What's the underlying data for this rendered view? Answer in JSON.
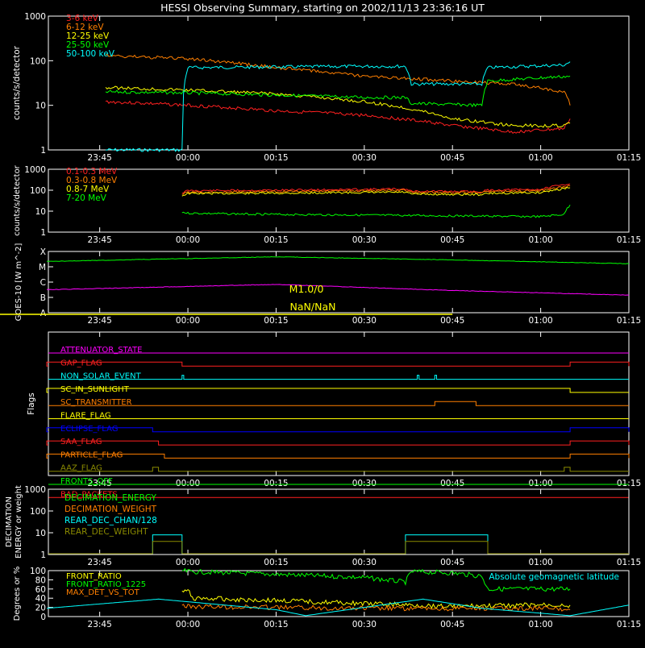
{
  "title": "HESSI Observing Summary, starting on 2002/11/13 23:36:16 UT",
  "time_ticks": [
    "23:45",
    "00:00",
    "00:15",
    "00:30",
    "00:45",
    "01:00",
    "01:15"
  ],
  "colors": {
    "red": "#ff2020",
    "orange": "#ff7f00",
    "yellow": "#ffff00",
    "green": "#00ff00",
    "cyan": "#00ffff",
    "magenta": "#ff00ff",
    "blue": "#0000ff",
    "white": "#ffffff",
    "olive": "#8b8b00"
  },
  "chart_data": [
    {
      "type": "line",
      "ylabel": "counts/s/detector",
      "yscale": "log",
      "ylim": [
        1,
        1000
      ],
      "yticks": [
        "1",
        "10",
        "100",
        "1000"
      ],
      "legend_placement": "top-left",
      "series": [
        {
          "name": "3-6 keV",
          "color": "#ff2020",
          "t": [
            "23:46",
            "00:00",
            "00:15",
            "00:30",
            "00:45",
            "00:55",
            "01:04",
            "01:05"
          ],
          "values": [
            12,
            10,
            7.5,
            6,
            3.5,
            2.5,
            3,
            5
          ]
        },
        {
          "name": "6-12 keV",
          "color": "#ff7f00",
          "t": [
            "23:46",
            "00:00",
            "00:15",
            "00:30",
            "00:45",
            "00:55",
            "01:04",
            "01:05"
          ],
          "values": [
            130,
            110,
            70,
            45,
            35,
            30,
            20,
            10
          ]
        },
        {
          "name": "12-25 keV",
          "color": "#ffff00",
          "t": [
            "23:46",
            "00:00",
            "00:15",
            "00:30",
            "00:45",
            "00:55",
            "01:04",
            "01:05"
          ],
          "values": [
            25,
            22,
            18,
            12,
            5,
            3.5,
            3.5,
            4
          ]
        },
        {
          "name": "25-50 keV",
          "color": "#00ff00",
          "t": [
            "23:46",
            "00:00",
            "00:15",
            "00:30",
            "00:37",
            "00:38",
            "00:50",
            "00:51",
            "01:05"
          ],
          "values": [
            20,
            19,
            17,
            15,
            15,
            11,
            10,
            35,
            45
          ]
        },
        {
          "name": "50-100 keV",
          "color": "#00ffff",
          "t": [
            "23:46",
            "23:59",
            "00:00",
            "00:30",
            "00:37",
            "00:38",
            "00:50",
            "00:51",
            "01:04",
            "01:05"
          ],
          "values": [
            1,
            1,
            70,
            75,
            75,
            30,
            30,
            70,
            80,
            95
          ]
        }
      ]
    },
    {
      "type": "line",
      "ylabel": "counts/s/detector",
      "yscale": "log",
      "ylim": [
        1,
        1000
      ],
      "yticks": [
        "1",
        "10",
        "100",
        "1000"
      ],
      "legend_placement": "top-left",
      "series": [
        {
          "name": "0.1-0.3 MeV",
          "color": "#ff2020",
          "t": [
            "23:59",
            "00:00",
            "00:15",
            "00:30",
            "00:37",
            "00:38",
            "00:50",
            "00:51",
            "01:00",
            "01:05"
          ],
          "values": [
            75,
            95,
            100,
            110,
            115,
            90,
            85,
            100,
            110,
            200
          ]
        },
        {
          "name": "0.3-0.8 MeV",
          "color": "#ff7f00",
          "t": [
            "23:59",
            "00:00",
            "00:15",
            "00:30",
            "00:37",
            "00:38",
            "00:50",
            "00:51",
            "01:00",
            "01:05"
          ],
          "values": [
            65,
            80,
            85,
            95,
            100,
            80,
            75,
            85,
            95,
            160
          ]
        },
        {
          "name": "0.8-7 MeV",
          "color": "#ffff00",
          "t": [
            "23:59",
            "00:00",
            "00:15",
            "00:30",
            "00:37",
            "00:38",
            "00:50",
            "00:51",
            "01:00",
            "01:05"
          ],
          "values": [
            55,
            70,
            72,
            78,
            80,
            65,
            62,
            70,
            78,
            130
          ]
        },
        {
          "name": "7-20 MeV",
          "color": "#00ff00",
          "t": [
            "23:59",
            "00:00",
            "00:15",
            "00:30",
            "00:45",
            "01:00",
            "01:04",
            "01:05"
          ],
          "values": [
            9,
            8,
            7,
            6.5,
            6,
            5.5,
            7,
            20
          ]
        }
      ]
    },
    {
      "type": "line",
      "ylabel": "GOES-10 [W m^-2]",
      "yticks": [
        "A",
        "B",
        "C",
        "M",
        "X"
      ],
      "annotation": "M1.0/0",
      "annotation2": "NaN/NaN",
      "series": [
        {
          "name": "",
          "color": "#00ff00",
          "t": [
            "23:36",
            "00:15",
            "00:45",
            "01:15"
          ],
          "level": [
            3.35,
            3.65,
            3.45,
            3.2
          ]
        },
        {
          "name": "",
          "color": "#ff00ff",
          "t": [
            "23:36",
            "00:15",
            "00:45",
            "01:15"
          ],
          "level": [
            1.5,
            1.85,
            1.45,
            1.15
          ]
        }
      ]
    }
  ],
  "flags_panel": {
    "ylabel": "Flags",
    "flags": [
      {
        "name": "ATTENUATOR_STATE",
        "color": "#ff00ff"
      },
      {
        "name": "GAP_FLAG",
        "color": "#ff2020",
        "high": [
          [
            "23:36",
            "23:59"
          ],
          [
            "01:05",
            "01:15"
          ]
        ]
      },
      {
        "name": "NON_SOLAR_EVENT",
        "color": "#00ffff",
        "high": [
          [
            "23:59",
            "23:59.3"
          ],
          [
            "00:39",
            "00:39.3"
          ],
          [
            "00:42",
            "00:42.3"
          ]
        ]
      },
      {
        "name": "SC_IN_SUNLIGHT",
        "color": "#ffff00",
        "high": [
          [
            "23:36",
            "01:05"
          ]
        ]
      },
      {
        "name": "SC_TRANSMITTER",
        "color": "#ff7f00",
        "high": [
          [
            "00:42",
            "00:49"
          ]
        ]
      },
      {
        "name": "FLARE_FLAG",
        "color": "#ffff00"
      },
      {
        "name": "ECLIPSE_FLAG",
        "color": "#0000ff",
        "high": [
          [
            "23:36",
            "23:54"
          ],
          [
            "01:05",
            "01:15"
          ]
        ]
      },
      {
        "name": "SAA_FLAG",
        "color": "#ff2020",
        "high": [
          [
            "23:36",
            "23:55"
          ],
          [
            "01:05",
            "01:15"
          ]
        ]
      },
      {
        "name": "PARTICLE_FLAG",
        "color": "#ff7f00",
        "high": [
          [
            "23:36",
            "23:56"
          ],
          [
            "01:05",
            "01:15"
          ]
        ]
      },
      {
        "name": "AAZ_FLAG",
        "color": "#8b8b00",
        "high": [
          [
            "23:54",
            "23:55"
          ],
          [
            "01:04",
            "01:05"
          ]
        ]
      },
      {
        "name": "FRONTS_OFF",
        "color": "#00ff00"
      },
      {
        "name": "BAD_PACKETS",
        "color": "#ff2020"
      }
    ]
  },
  "decim_panel": {
    "ylabel_1": "DECIMATION",
    "ylabel_2": "ENERGY or weight",
    "yticks": [
      "1",
      "10",
      "100",
      "1000"
    ],
    "legend": [
      {
        "name": "DECIMATION_ENERGY",
        "color": "#00ff00"
      },
      {
        "name": "DECIMATION_WEIGHT",
        "color": "#ff7f00"
      },
      {
        "name": "REAR_DEC_CHAN/128",
        "color": "#00ffff"
      },
      {
        "name": "REAR_DEC_WEIGHT",
        "color": "#8b8b00"
      }
    ],
    "rear_chan_boxes": [
      [
        "23:54",
        "23:59"
      ],
      [
        "00:37",
        "00:51"
      ]
    ],
    "rear_chan_value": 8,
    "rear_weight_value": 4
  },
  "bottom_panel": {
    "ylabel": "Degrees or %",
    "yticks": [
      "0",
      "20",
      "40",
      "60",
      "80",
      "100"
    ],
    "annotation": "Absolute geomagnetic latitude",
    "annotation_color": "#00ffff",
    "legend": [
      {
        "name": "FRONT_RATIO",
        "color": "#ffff00"
      },
      {
        "name": "FRONT_RATIO_1225",
        "color": "#00ff00"
      },
      {
        "name": "MAX_DET_VS_TOT",
        "color": "#ff7f00"
      }
    ],
    "chart_data": {
      "type": "line",
      "ylim": [
        0,
        100
      ],
      "series": [
        {
          "name": "FRONT_RATIO",
          "color": "#ffff00",
          "t": [
            "23:59",
            "00:00",
            "00:01",
            "00:15",
            "00:30",
            "00:45",
            "01:00",
            "01:05"
          ],
          "values": [
            55,
            55,
            40,
            35,
            28,
            22,
            25,
            25
          ]
        },
        {
          "name": "FRONT_RATIO_1225",
          "color": "#00ff00",
          "t": [
            "23:59",
            "00:00",
            "00:15",
            "00:30",
            "00:37",
            "00:38",
            "00:45",
            "00:50",
            "00:51",
            "01:05"
          ],
          "values": [
            100,
            98,
            92,
            85,
            75,
            98,
            95,
            88,
            60,
            60
          ]
        },
        {
          "name": "MAX_DET_VS_TOT",
          "color": "#ff7f00",
          "t": [
            "23:59",
            "00:00",
            "00:15",
            "00:30",
            "00:45",
            "01:00",
            "01:05"
          ],
          "values": [
            25,
            22,
            20,
            18,
            17,
            18,
            15
          ]
        },
        {
          "name": "Absolute geomagnetic latitude",
          "color": "#00ffff",
          "t": [
            "23:36",
            "23:55",
            "00:15",
            "00:20",
            "00:40",
            "00:50",
            "01:05",
            "01:15"
          ],
          "values": [
            18,
            38,
            15,
            2,
            38,
            18,
            2,
            25
          ]
        }
      ]
    }
  }
}
